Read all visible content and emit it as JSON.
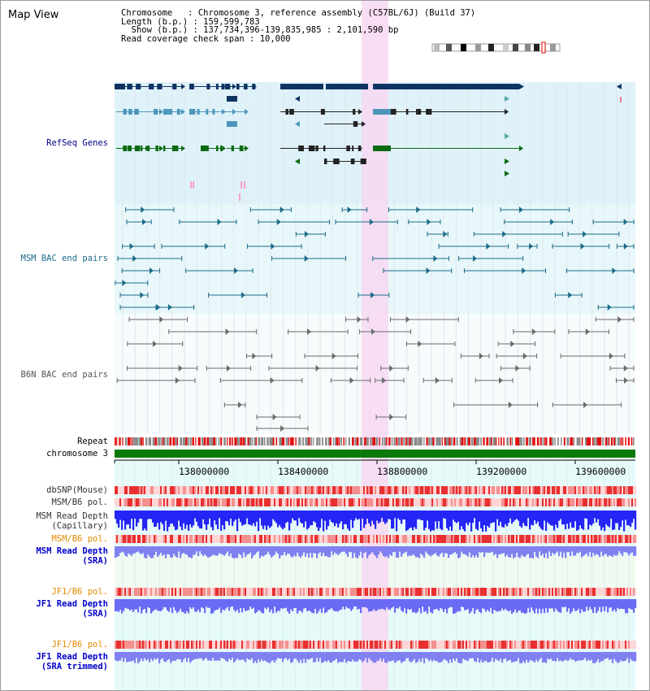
{
  "title": "Map View",
  "info": {
    "chromosome_label": "Chromosome",
    "chromosome_value": "Chromosome 3, reference assembly (C57BL/6J) (Build 37)",
    "length_label": "Length (b.p.)",
    "length_value": "159,599,783",
    "show_label": "Show (b.p.)",
    "show_value": "137,734,396-139,835,985 : 2,101,590 bp",
    "coverage_label": "Read coverage check span",
    "coverage_value": "10,000"
  },
  "tracks": {
    "refseq": "RefSeq Genes",
    "msm_bac": "MSM BAC end pairs",
    "b6n_bac": "B6N BAC end pairs",
    "repeat": "Repeat",
    "chromosome": "chromosome 3",
    "dbsnp": "dbSNP(Mouse)",
    "msm_b6_pol_1": "MSM/B6 pol.",
    "msm_depth_cap_1": "MSM Read Depth",
    "msm_depth_cap_2": "(Capillary)",
    "msm_b6_pol_2": "MSM/B6 pol.",
    "msm_depth_sra_1": "MSM Read Depth",
    "msm_depth_sra_2": "(SRA)",
    "jf1_b6_pol_1": "JF1/B6 pol.",
    "jf1_depth_sra_1": "JF1 Read Depth",
    "jf1_depth_sra_2": "(SRA)",
    "jf1_b6_pol_2": "JF1/B6 pol.",
    "jf1_depth_trim_1": "JF1 Read Depth",
    "jf1_depth_trim_2": "(SRA trimmed)"
  },
  "axis": {
    "ticks": [
      "138000000",
      "138400000",
      "138800000",
      "139200000",
      "139600000"
    ]
  },
  "colors": {
    "refseq_bg": "#dff2fa",
    "bac_bg": "#e8f8fa",
    "highlight": "#f7d8f2",
    "gene_dark": "#0f3463",
    "gene_mid": "#4c96b9",
    "gene_green": "#0b6b12",
    "msm_pair": "#1c6b8a",
    "b6n_pair": "#6a6a6a",
    "chromosome_bar": "#0b7a0b",
    "depth_blue": "#2525f5",
    "depth_light": "#8080f0"
  }
}
